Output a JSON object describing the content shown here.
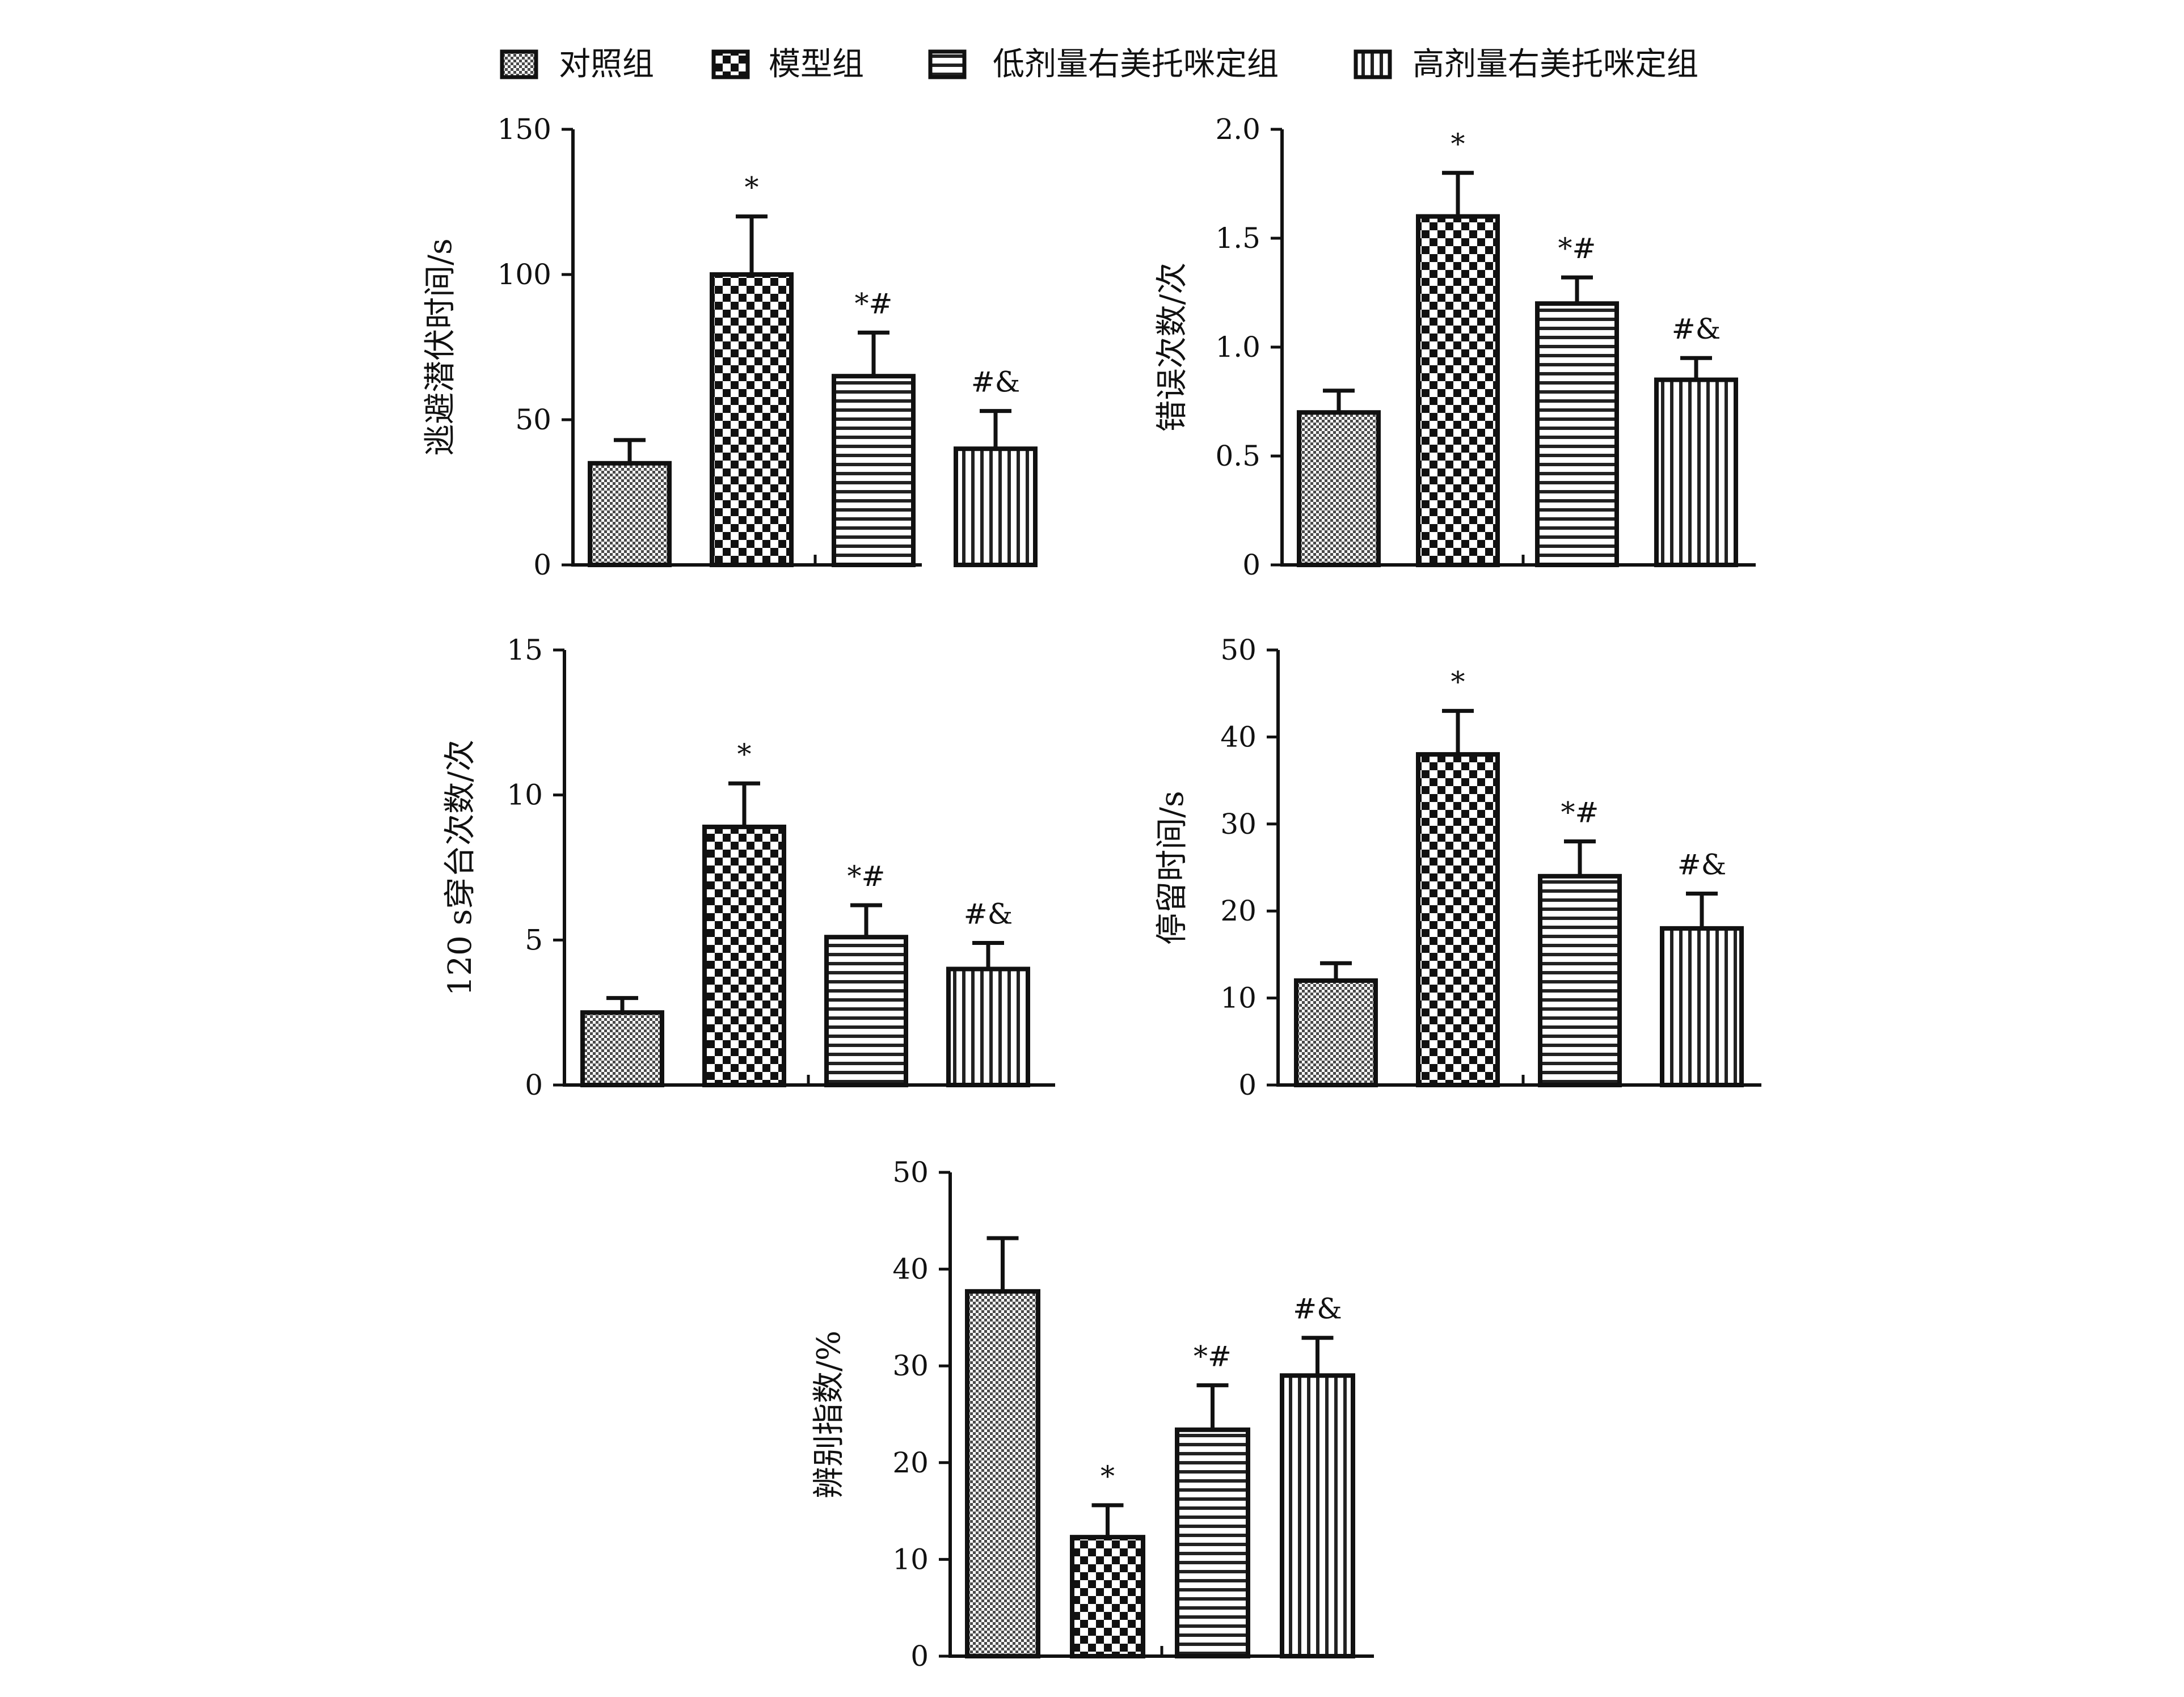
{
  "legend": [
    {
      "label": "对照组",
      "pattern": "dots"
    },
    {
      "label": "模型组",
      "pattern": "checker"
    },
    {
      "label": "低剂量右美托咪定组",
      "pattern": "hlines"
    },
    {
      "label": "高剂量右美托咪定组",
      "pattern": "vlines"
    }
  ],
  "chart_data": [
    {
      "type": "bar",
      "categories": [
        "对照组",
        "模型组",
        "低剂量右美托咪定组",
        "高剂量右美托咪定组"
      ],
      "ylabel": "逃避潜伏时间/s",
      "ylim": [
        0,
        150
      ],
      "yticks": [
        "0",
        "50",
        "100",
        "150"
      ],
      "values": [
        35,
        100,
        65,
        40
      ],
      "errors": [
        8,
        20,
        15,
        13
      ],
      "annotations": [
        "",
        "*",
        "*#",
        "#&"
      ]
    },
    {
      "type": "bar",
      "categories": [
        "对照组",
        "模型组",
        "低剂量右美托咪定组",
        "高剂量右美托咪定组"
      ],
      "ylabel": "错误次数/次",
      "ylim": [
        0,
        2.0
      ],
      "yticks": [
        "0",
        "0.5",
        "1.0",
        "1.5",
        "2.0"
      ],
      "values": [
        0.7,
        1.6,
        1.2,
        0.85
      ],
      "errors": [
        0.1,
        0.2,
        0.12,
        0.1
      ],
      "annotations": [
        "",
        "*",
        "*#",
        "#&"
      ]
    },
    {
      "type": "bar",
      "categories": [
        "对照组",
        "模型组",
        "低剂量右美托咪定组",
        "高剂量右美托咪定组"
      ],
      "ylabel": "120 s穿台次数/次",
      "ylim": [
        0,
        15
      ],
      "yticks": [
        "0",
        "5",
        "10",
        "15"
      ],
      "values": [
        2.5,
        8.9,
        5.1,
        4.0
      ],
      "errors": [
        0.5,
        1.5,
        1.1,
        0.9
      ],
      "annotations": [
        "",
        "*",
        "*#",
        "#&"
      ]
    },
    {
      "type": "bar",
      "categories": [
        "对照组",
        "模型组",
        "低剂量右美托咪定组",
        "高剂量右美托咪定组"
      ],
      "ylabel": "停留时间/s",
      "ylim": [
        0,
        50
      ],
      "yticks": [
        "0",
        "10",
        "20",
        "30",
        "40",
        "50"
      ],
      "values": [
        12,
        38,
        24,
        18
      ],
      "errors": [
        2,
        5,
        4,
        4
      ],
      "annotations": [
        "",
        "*",
        "*#",
        "#&"
      ]
    },
    {
      "type": "bar",
      "categories": [
        "对照组",
        "模型组",
        "低剂量右美托咪定组",
        "高剂量右美托咪定组"
      ],
      "ylabel": "辨别指数/%",
      "ylim": [
        0,
        50
      ],
      "yticks": [
        "0",
        "10",
        "20",
        "30",
        "40",
        "50"
      ],
      "values": [
        37.7,
        12.3,
        23.4,
        29.0
      ],
      "errors": [
        5.5,
        3.3,
        4.6,
        3.9
      ],
      "annotations": [
        "",
        "*",
        "*#",
        "#&"
      ]
    }
  ]
}
